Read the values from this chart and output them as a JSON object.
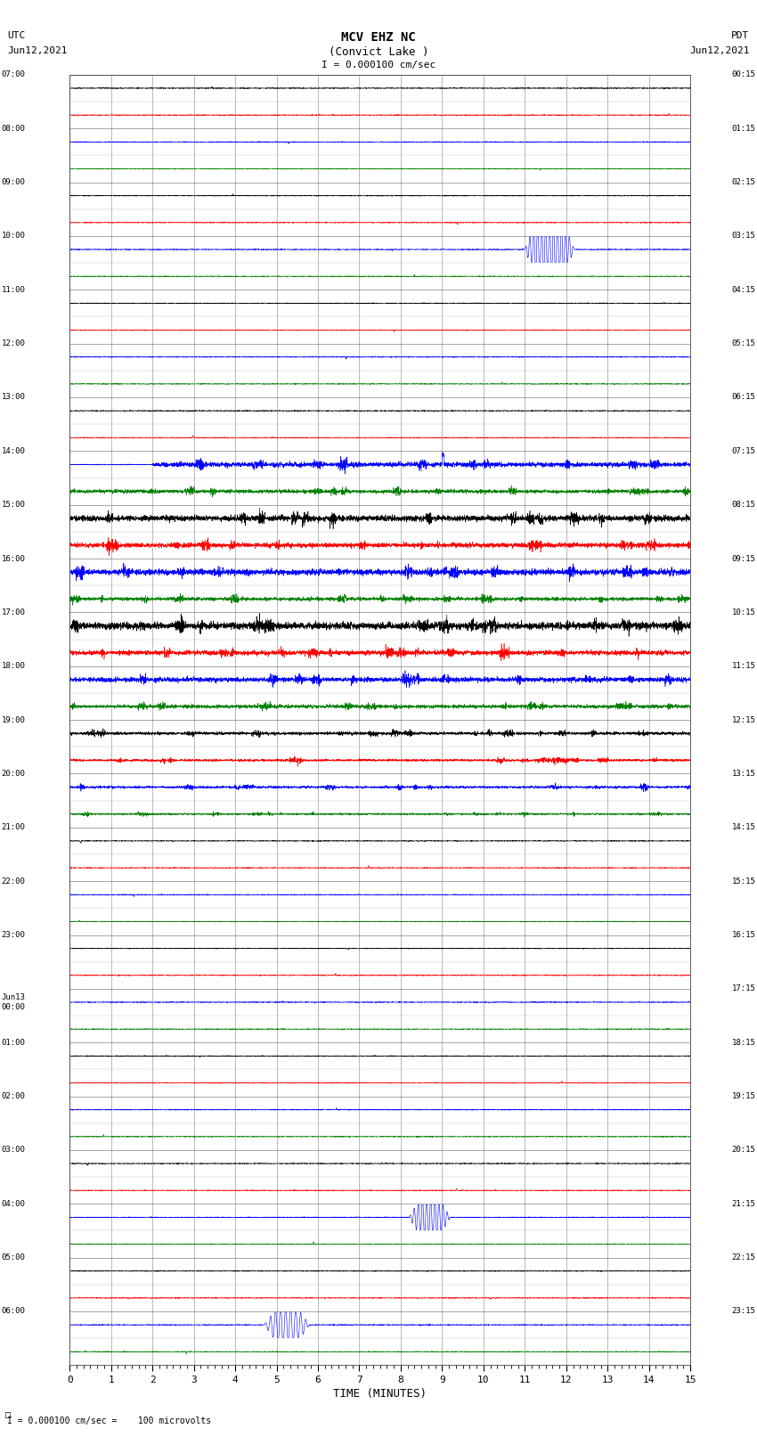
{
  "title_line1": "MCV EHZ NC",
  "title_line2": "(Convict Lake )",
  "title_scale": "I = 0.000100 cm/sec",
  "left_header_line1": "UTC",
  "left_header_line2": "Jun12,2021",
  "right_header_line1": "PDT",
  "right_header_line2": "Jun12,2021",
  "xlabel": "TIME (MINUTES)",
  "footer": "I = 0.000100 cm/sec =    100 microvolts",
  "xlim": [
    0,
    15
  ],
  "xticks": [
    0,
    1,
    2,
    3,
    4,
    5,
    6,
    7,
    8,
    9,
    10,
    11,
    12,
    13,
    14,
    15
  ],
  "background_color": "#ffffff",
  "grid_color": "#666666",
  "subgrid_color": "#aaaaaa",
  "fig_width": 8.5,
  "fig_height": 16.13,
  "num_traces": 48,
  "left_times": [
    "07:00",
    "",
    "08:00",
    "",
    "09:00",
    "",
    "10:00",
    "",
    "11:00",
    "",
    "12:00",
    "",
    "13:00",
    "",
    "14:00",
    "",
    "15:00",
    "",
    "16:00",
    "",
    "17:00",
    "",
    "18:00",
    "",
    "19:00",
    "",
    "20:00",
    "",
    "21:00",
    "",
    "22:00",
    "",
    "23:00",
    "",
    "Jun13\n00:00",
    "",
    "01:00",
    "",
    "02:00",
    "",
    "03:00",
    "",
    "04:00",
    "",
    "05:00",
    "",
    "06:00",
    ""
  ],
  "right_times": [
    "00:15",
    "",
    "01:15",
    "",
    "02:15",
    "",
    "03:15",
    "",
    "04:15",
    "",
    "05:15",
    "",
    "06:15",
    "",
    "07:15",
    "",
    "08:15",
    "",
    "09:15",
    "",
    "10:15",
    "",
    "11:15",
    "",
    "12:15",
    "",
    "13:15",
    "",
    "14:15",
    "",
    "15:15",
    "",
    "16:15",
    "",
    "17:15",
    "",
    "18:15",
    "",
    "19:15",
    "",
    "20:15",
    "",
    "21:15",
    "",
    "22:15",
    "",
    "23:15",
    ""
  ],
  "trace_colors": [
    "black",
    "red",
    "blue",
    "green"
  ]
}
